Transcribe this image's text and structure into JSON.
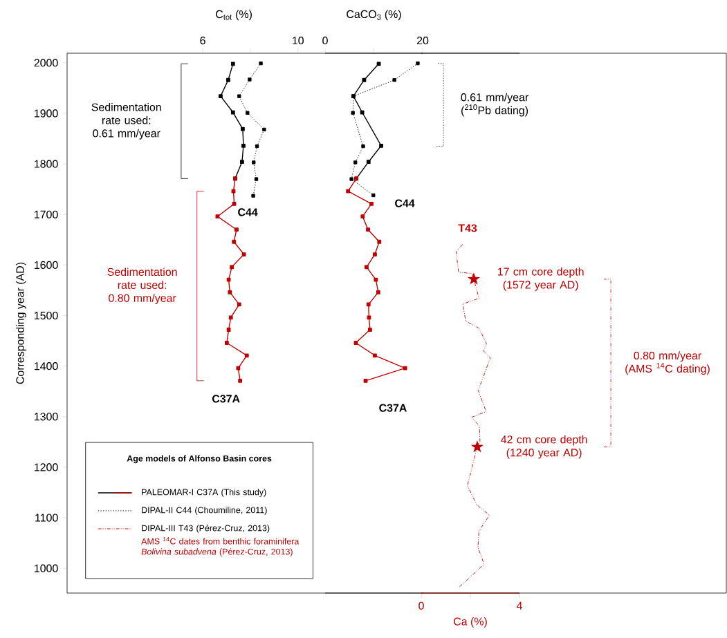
{
  "chart_data": [
    {
      "type": "line",
      "xlabel": "C$_{tot}$ (%)",
      "ylabel": "Corresponding year (AD)",
      "xlim": [
        0.3,
        28
      ],
      "xticks": [
        6,
        {
          "value": 8,
          "label": null
        },
        10
      ],
      "ylim": [
        951,
        2019
      ],
      "yticks": [
        1000,
        1100,
        1200,
        1300,
        1400,
        1500,
        1600,
        1700,
        1800,
        1900,
        2000
      ],
      "marker": "square",
      "legend": "bottom left",
      "legend_title": "Age models of Alfonso Basin cores",
      "series": [
        {
          "name": "PALEOMAR-I C37A (This study)",
          "color": "#000000",
          "x": [
            7.27,
            7.07,
            6.75,
            7.27,
            7.68,
            7.71,
            7.65,
            7.36
          ],
          "values": [
            1998,
            1966,
            1934,
            1902,
            1869,
            1836,
            1804,
            1771
          ]
        },
        {
          "color": "#c00000",
          "x": [
            7.36,
            7.29,
            7.32,
            6.62,
            7.42,
            7.31,
            7.73,
            7.22,
            7.09,
            7.14,
            7.53,
            7.18,
            7.09,
            7.01,
            7.85,
            7.49,
            7.57
          ],
          "values": [
            1771,
            1746,
            1721,
            1696,
            1670,
            1646,
            1621,
            1596,
            1571,
            1546,
            1522,
            1496,
            1472,
            1446,
            1421,
            1396,
            1371
          ]
        },
        {
          "name": "DIPAL-II C44 (Choumiline, 2011)",
          "color": "#000000",
          "line_style": "dotted",
          "x": [
            8.44,
            7.97,
            7.53,
            7.88,
            8.58,
            8.28,
            8.14,
            8.25,
            8.12
          ],
          "values": [
            1999,
            1967,
            1934,
            1901,
            1868,
            1835,
            1803,
            1770,
            1737
          ]
        }
      ],
      "annotations": [
        "C44",
        "C37A",
        "Sedimentation rate used: 0.61 mm/year",
        "Sedimentation rate used: 0.80 mm/year"
      ]
    },
    {
      "type": "line",
      "xlabel": "CaCO$_{3}$ (%)",
      "xlim": [
        0,
        20
      ],
      "xticks": [
        0,
        {
          "value": 10,
          "label": null
        },
        20
      ],
      "ylim": [
        951,
        2019
      ],
      "yticks": [
        1000,
        1100,
        1200,
        1300,
        1400,
        1500,
        1600,
        1700,
        1800,
        1900,
        2000
      ],
      "tick_labels": "x",
      "marker": "square",
      "series": [
        {
          "color": "#000000",
          "x": [
            11.0,
            8.0,
            5.8,
            7.6,
            11.5,
            8.9,
            6.4
          ],
          "values": [
            1998,
            1966,
            1934,
            1902,
            1836,
            1804,
            1771
          ]
        },
        {
          "color": "#c00000",
          "x": [
            6.4,
            4.7,
            9.5,
            7.7,
            8.8,
            11.1,
            10.2,
            8.5,
            10.4,
            10.9,
            8.9,
            9.0,
            9.2,
            6.3,
            10.2,
            16.4,
            8.3
          ],
          "values": [
            1771,
            1746,
            1721,
            1696,
            1670,
            1646,
            1621,
            1596,
            1571,
            1546,
            1522,
            1496,
            1472,
            1446,
            1421,
            1396,
            1371
          ]
        },
        {
          "color": "#000000",
          "line_style": "dotted",
          "x": [
            19.0,
            14.2,
            5.8,
            5.7,
            7.8,
            6.2,
            5.4,
            9.9
          ],
          "values": [
            1999,
            1966,
            1934,
            1901,
            1835,
            1803,
            1770,
            1738
          ]
        }
      ],
      "annotations": [
        "C44",
        "C37A",
        "0.61 mm/year ($^{210}$Pb dating)"
      ]
    },
    {
      "type": "line",
      "xlabel": "Ca (%)",
      "xlim": [
        0,
        4
      ],
      "xticks": [
        0,
        {
          "value": 2,
          "label": null
        },
        4
      ],
      "ylim": [
        951,
        2019
      ],
      "yticks": [
        1000,
        1100,
        1200,
        1300,
        1400,
        1500,
        1600,
        1700,
        1800,
        1900,
        2000
      ],
      "tick_labels": "x",
      "series": [
        {
          "name": "DIPAL-III T43 (Pérez-Cruz, 2013)",
          "color": "#c00000",
          "line_style": "dashdotdotted",
          "marker": "none",
          "x": [
            1.69,
            1.42,
            1.52,
            2.08,
            2.14,
            2.35,
            1.69,
            1.81,
            2.35,
            2.66,
            2.54,
            2.81,
            2.32,
            2.64,
            2.06,
            2.37,
            2.39,
            2.28,
            1.88,
            2.25,
            2.78,
            2.35,
            2.31,
            2.56,
            1.55
          ],
          "values": [
            1641,
            1626,
            1586,
            1583,
            1572,
            1534,
            1523,
            1489,
            1475,
            1444,
            1430,
            1416,
            1352,
            1310,
            1299,
            1281,
            1251,
            1240,
            1164,
            1126,
            1105,
            1074,
            1041,
            1008,
            963
          ]
        },
        {
          "name": "AMS $^{14}$C dates from benthic foraminifera *Bolivina subadvena* (Pérez-Cruz, 2013)",
          "type": "scatter",
          "marker": "star",
          "color": "#c00000",
          "x": [
            2.14,
            2.28
          ],
          "values": [
            1572,
            1240
          ]
        }
      ],
      "annotations": [
        "T43",
        {
          "text": "17 cm core depth (1572 year AD)",
          "x": 2.14,
          "y": 1572
        },
        {
          "text": "42 cm core depth (1240 year AD)",
          "x": 2.28,
          "y": 1240
        },
        "0.80 mm/year (AMS $^{14}$C dating)"
      ]
    }
  ]
}
